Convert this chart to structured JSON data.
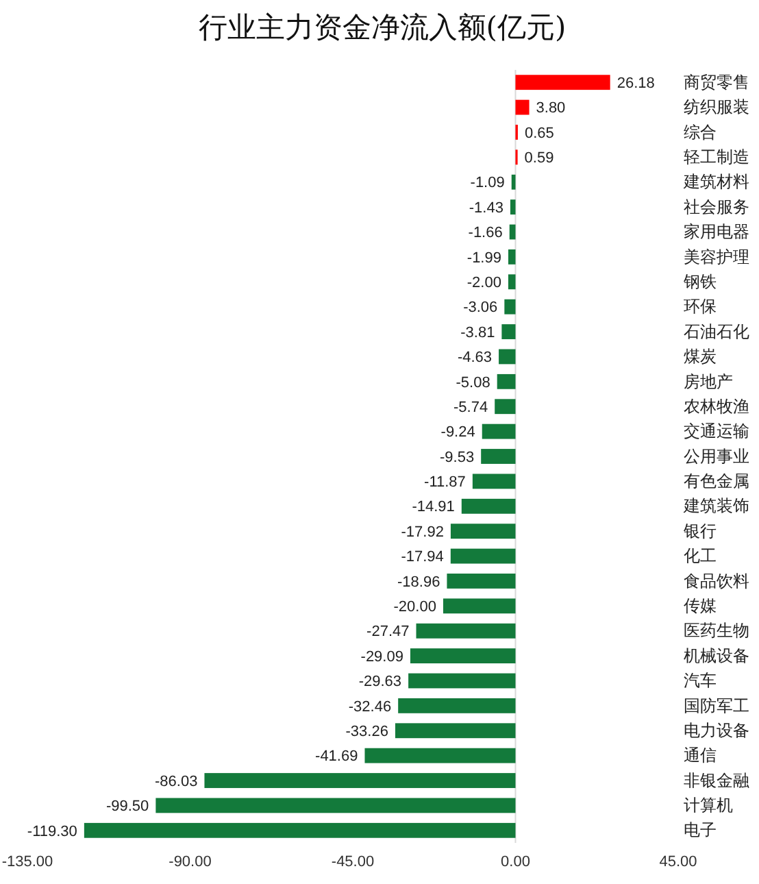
{
  "chart_data": {
    "type": "bar",
    "orientation": "horizontal",
    "title": "行业主力资金净流入额(亿元)",
    "categories": [
      "商贸零售",
      "纺织服装",
      "综合",
      "轻工制造",
      "建筑材料",
      "社会服务",
      "家用电器",
      "美容护理",
      "钢铁",
      "环保",
      "石油石化",
      "煤炭",
      "房地产",
      "农林牧渔",
      "交通运输",
      "公用事业",
      "有色金属",
      "建筑装饰",
      "银行",
      "化工",
      "食品饮料",
      "传媒",
      "医药生物",
      "机械设备",
      "汽车",
      "国防军工",
      "电力设备",
      "通信",
      "非银金融",
      "计算机",
      "电子"
    ],
    "values": [
      26.18,
      3.8,
      0.65,
      0.59,
      -1.09,
      -1.43,
      -1.66,
      -1.99,
      -2.0,
      -3.06,
      -3.81,
      -4.63,
      -5.08,
      -5.74,
      -9.24,
      -9.53,
      -11.87,
      -14.91,
      -17.92,
      -17.94,
      -18.96,
      -20.0,
      -27.47,
      -29.09,
      -29.63,
      -32.46,
      -33.26,
      -41.69,
      -86.03,
      -99.5,
      -119.3
    ],
    "value_labels": [
      "26.18",
      "3.80",
      "0.65",
      "0.59",
      "-1.09",
      "-1.43",
      "-1.66",
      "-1.99",
      "-2.00",
      "-3.06",
      "-3.81",
      "-4.63",
      "-5.08",
      "-5.74",
      "-9.24",
      "-9.53",
      "-11.87",
      "-14.91",
      "-17.92",
      "-17.94",
      "-18.96",
      "-20.00",
      "-27.47",
      "-29.09",
      "-29.63",
      "-32.46",
      "-33.26",
      "-41.69",
      "-86.03",
      "-99.50",
      "-119.30"
    ],
    "colors": [
      "#ff0000",
      "#ff0000",
      "#ff0000",
      "#ff0000",
      "#137a3b",
      "#137a3b",
      "#137a3b",
      "#137a3b",
      "#137a3b",
      "#137a3b",
      "#137a3b",
      "#137a3b",
      "#137a3b",
      "#137a3b",
      "#137a3b",
      "#137a3b",
      "#137a3b",
      "#137a3b",
      "#137a3b",
      "#137a3b",
      "#137a3b",
      "#137a3b",
      "#137a3b",
      "#137a3b",
      "#137a3b",
      "#137a3b",
      "#137a3b",
      "#137a3b",
      "#137a3b",
      "#137a3b",
      "#137a3b"
    ],
    "xlim": [
      -135,
      45
    ],
    "xticks": [
      {
        "value": -135,
        "label": "-135.00"
      },
      {
        "value": -90,
        "label": "-90.00"
      },
      {
        "value": -45,
        "label": "-45.00"
      },
      {
        "value": 0,
        "label": "0.00"
      },
      {
        "value": 45,
        "label": "45.00"
      }
    ]
  }
}
